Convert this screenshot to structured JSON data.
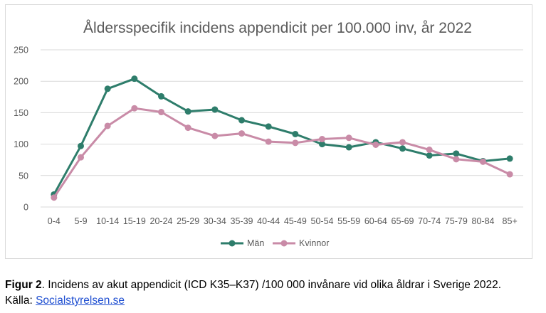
{
  "chart_data": {
    "type": "line",
    "title": "Åldersspecifik incidens appendicit per 100.000 inv, år 2022",
    "categories": [
      "0-4",
      "5-9",
      "10-14",
      "15-19",
      "20-24",
      "25-29",
      "30-34",
      "35-39",
      "40-44",
      "45-49",
      "50-54",
      "55-59",
      "60-64",
      "65-69",
      "70-74",
      "75-79",
      "80-84",
      "85+"
    ],
    "ylim": [
      0,
      250
    ],
    "yticks": [
      0,
      50,
      100,
      150,
      200,
      250
    ],
    "grid": true,
    "legend": "bottom-center",
    "series": [
      {
        "name": "Män",
        "color": "#2e7d6b",
        "values": [
          20,
          97,
          188,
          204,
          176,
          152,
          155,
          138,
          128,
          116,
          100,
          95,
          103,
          93,
          82,
          85,
          73,
          77
        ]
      },
      {
        "name": "Kvinnor",
        "color": "#c98ba7",
        "values": [
          15,
          79,
          129,
          157,
          151,
          126,
          113,
          117,
          104,
          102,
          108,
          110,
          99,
          103,
          91,
          76,
          72,
          52
        ]
      }
    ]
  },
  "caption": {
    "fig_label": "Figur 2",
    "text": ". Incidens av akut appendicit (ICD K35–K37) /100 000 invånare vid olika åldrar i Sverige 2022.",
    "source_prefix": "Källa: ",
    "source_link": "Socialstyrelsen.se"
  }
}
